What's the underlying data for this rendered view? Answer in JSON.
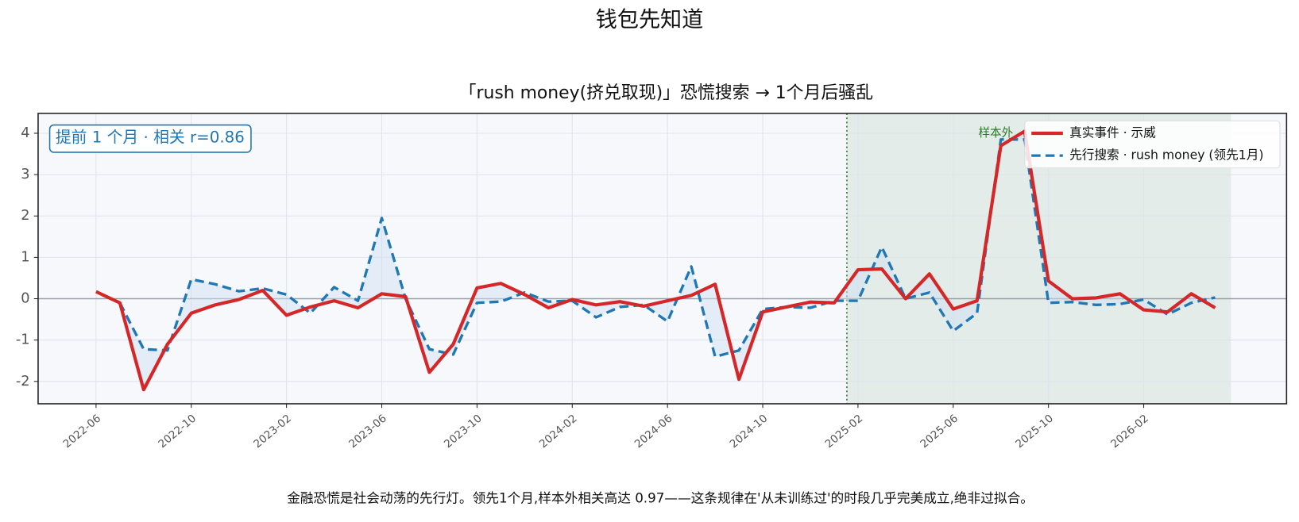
{
  "chart_data": {
    "type": "line",
    "title": "钱包先知道",
    "subtitle": "「rush money(挤兑取现)」恐慌搜索 → 1个月后骚乱",
    "annotation": "提前 1 个月 · 相关 r=0.86",
    "region_label": "样本外",
    "footnote": "金融恐慌是社会动荡的先行灯。领先1个月,样本外相关高达 0.97——这条规律在'从未训练过'的时段几乎完美成立,绝非过拟合。",
    "x": [
      "2022-06",
      "2022-07",
      "2022-08",
      "2022-09",
      "2022-10",
      "2022-11",
      "2022-12",
      "2023-01",
      "2023-02",
      "2023-03",
      "2023-04",
      "2023-05",
      "2023-06",
      "2023-07",
      "2023-08",
      "2023-09",
      "2023-10",
      "2023-11",
      "2023-12",
      "2024-01",
      "2024-02",
      "2024-03",
      "2024-04",
      "2024-05",
      "2024-06",
      "2024-07",
      "2024-08",
      "2024-09",
      "2024-10",
      "2024-11",
      "2024-12",
      "2025-01",
      "2025-02",
      "2025-03",
      "2025-04",
      "2025-05",
      "2025-06",
      "2025-07",
      "2025-08",
      "2025-09",
      "2025-10",
      "2025-11",
      "2025-12",
      "2026-01",
      "2026-02",
      "2026-03",
      "2026-04",
      "2026-05"
    ],
    "series": [
      {
        "name": "真实事件 · 示威",
        "color": "#d62728",
        "style": "solid",
        "values": [
          0.17,
          -0.1,
          -2.2,
          -1.1,
          -0.35,
          -0.15,
          -0.02,
          0.2,
          -0.4,
          -0.2,
          -0.05,
          -0.22,
          0.12,
          0.05,
          -1.78,
          -1.1,
          0.26,
          0.37,
          0.1,
          -0.22,
          -0.02,
          -0.15,
          -0.07,
          -0.18,
          -0.05,
          0.08,
          0.35,
          -1.95,
          -0.32,
          -0.2,
          -0.08,
          -0.1,
          0.7,
          0.72,
          0.0,
          0.6,
          -0.25,
          -0.05,
          3.7,
          4.05,
          0.43,
          0.0,
          0.02,
          0.12,
          -0.27,
          -0.32,
          0.12,
          -0.22
        ]
      },
      {
        "name": "先行搜索 · rush money (领先1月)",
        "color": "#1f77b4",
        "style": "dashed",
        "values": [
          null,
          -0.1,
          -1.22,
          -1.25,
          0.47,
          0.35,
          0.18,
          0.25,
          0.1,
          -0.35,
          0.28,
          -0.05,
          1.95,
          0.0,
          -1.22,
          -1.35,
          -0.1,
          -0.07,
          0.15,
          -0.07,
          -0.05,
          -0.45,
          -0.2,
          -0.15,
          -0.55,
          0.78,
          -1.4,
          -1.25,
          -0.25,
          -0.2,
          -0.22,
          -0.05,
          -0.05,
          1.25,
          0.0,
          0.15,
          -0.78,
          -0.35,
          3.85,
          3.85,
          -0.1,
          -0.08,
          -0.15,
          -0.13,
          -0.02,
          -0.38,
          -0.1,
          0.03
        ]
      }
    ],
    "fill_between": "#cfe0f1",
    "region": [
      "2025-01-17",
      "2026-05-21"
    ],
    "region_color": "#e3ece8",
    "region_line_color": "#2a7a2a",
    "hline": 0,
    "xlim": [
      "2022-03-18",
      "2026-08-01"
    ],
    "xticks": [
      "2022-06",
      "2022-10",
      "2023-02",
      "2023-06",
      "2023-10",
      "2024-02",
      "2024-06",
      "2024-10",
      "2025-02",
      "2025-06",
      "2025-10",
      "2026-02"
    ],
    "ylim": [
      -2.54,
      4.48
    ],
    "yticks": [
      -2,
      -1,
      0,
      1,
      2,
      3,
      4
    ],
    "grid": true,
    "legend": "upper right"
  }
}
